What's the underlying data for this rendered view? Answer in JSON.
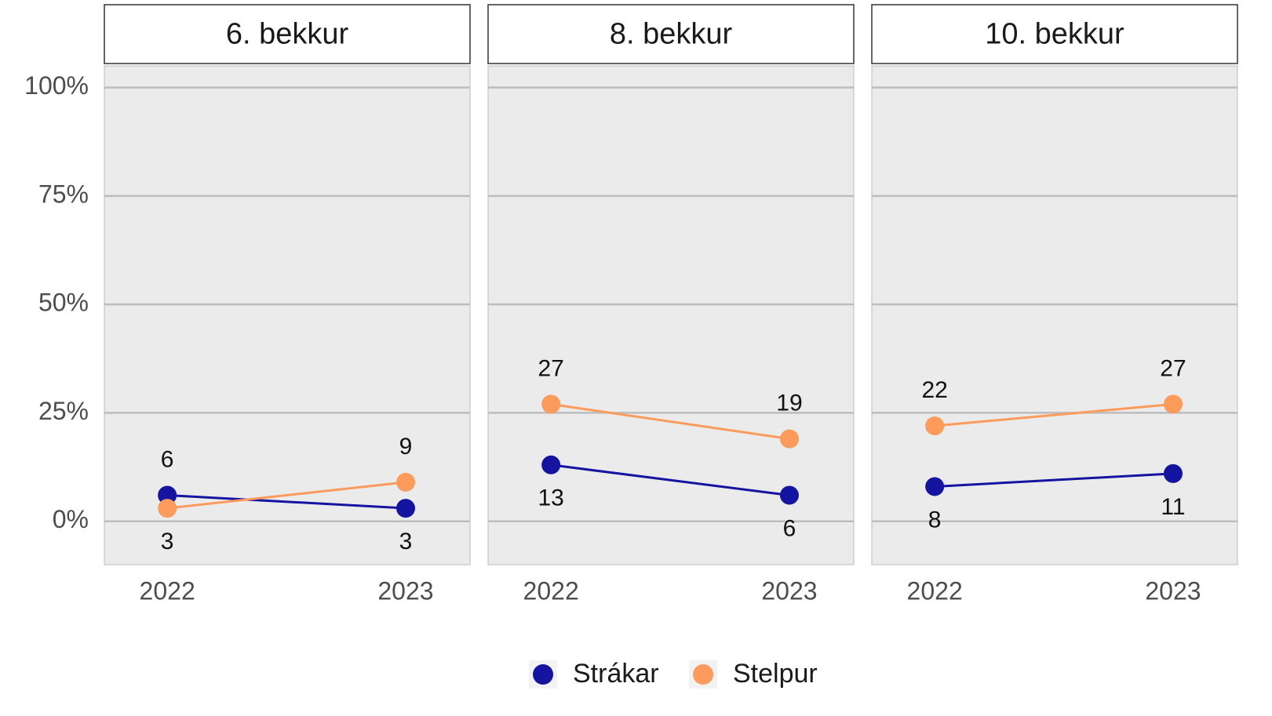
{
  "chart_data": [
    {
      "type": "line",
      "title": "6. bekkur",
      "categories": [
        "2022",
        "2023"
      ],
      "series": [
        {
          "name": "Strákar",
          "color": "#1414a0",
          "values": [
            6,
            3
          ]
        },
        {
          "name": "Stelpur",
          "color": "#fd9b5c",
          "values": [
            3,
            9
          ]
        }
      ],
      "ylim": [
        -10,
        105
      ],
      "yticks": [
        {
          "value": 0,
          "label": "0%"
        },
        {
          "value": 25,
          "label": "25%"
        },
        {
          "value": 50,
          "label": "50%"
        },
        {
          "value": 75,
          "label": "75%"
        },
        {
          "value": 100,
          "label": "100%"
        }
      ],
      "grid": true
    },
    {
      "type": "line",
      "title": "8. bekkur",
      "categories": [
        "2022",
        "2023"
      ],
      "series": [
        {
          "name": "Strákar",
          "color": "#1414a0",
          "values": [
            13,
            6
          ]
        },
        {
          "name": "Stelpur",
          "color": "#fd9b5c",
          "values": [
            27,
            19
          ]
        }
      ],
      "ylim": [
        -10,
        105
      ],
      "yticks": [
        {
          "value": 0,
          "label": "0%"
        },
        {
          "value": 25,
          "label": "25%"
        },
        {
          "value": 50,
          "label": "50%"
        },
        {
          "value": 75,
          "label": "75%"
        },
        {
          "value": 100,
          "label": "100%"
        }
      ],
      "grid": true
    },
    {
      "type": "line",
      "title": "10. bekkur",
      "categories": [
        "2022",
        "2023"
      ],
      "series": [
        {
          "name": "Strákar",
          "color": "#1414a0",
          "values": [
            8,
            11
          ]
        },
        {
          "name": "Stelpur",
          "color": "#fd9b5c",
          "values": [
            22,
            27
          ]
        }
      ],
      "ylim": [
        -10,
        105
      ],
      "yticks": [
        {
          "value": 0,
          "label": "0%"
        },
        {
          "value": 25,
          "label": "25%"
        },
        {
          "value": 50,
          "label": "50%"
        },
        {
          "value": 75,
          "label": "75%"
        },
        {
          "value": 100,
          "label": "100%"
        }
      ],
      "grid": true
    }
  ]
}
